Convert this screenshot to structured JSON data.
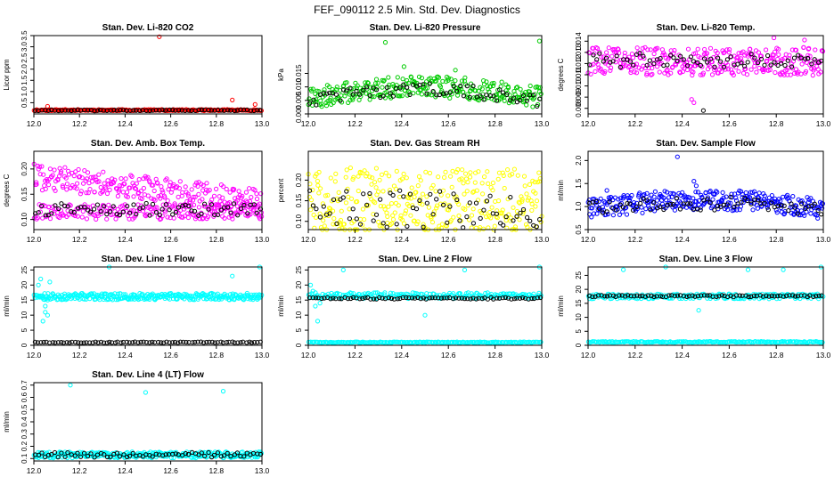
{
  "figure_title": "FEF_090112  2.5 Min. Std. Dev. Diagnostics",
  "colors": {
    "red": "#ff0000",
    "green": "#00cc00",
    "magenta": "#ff00ff",
    "yellow": "#ffff00",
    "blue": "#0000ff",
    "cyan": "#00ffff",
    "black": "#000000"
  },
  "chart_data": [
    {
      "id": "co2",
      "type": "scatter",
      "title": "Stan. Dev. Li-820 CO2",
      "xlabel": "",
      "ylabel": "Licor ppm",
      "xlim": [
        12.0,
        13.0
      ],
      "ylim": [
        0.0,
        3.5
      ],
      "xticks": [
        "12.0",
        "12.2",
        "12.4",
        "12.6",
        "12.8",
        "13.0"
      ],
      "yticks": [
        "0.5",
        "1.0",
        "1.5",
        "2.0",
        "2.5",
        "3.0",
        "3.5"
      ],
      "series": [
        {
          "name": "all",
          "color": "#ff0000",
          "gen": {
            "mode": "flat",
            "base": 0.17,
            "spread": 0.06,
            "n": 220,
            "seed": 11
          },
          "extra": [
            {
              "x": 12.55,
              "y": 3.45
            },
            {
              "x": 12.87,
              "y": 0.62
            },
            {
              "x": 12.97,
              "y": 0.42
            },
            {
              "x": 12.06,
              "y": 0.34
            }
          ]
        },
        {
          "name": "sampled",
          "color": "#000000",
          "gen": {
            "mode": "flat",
            "base": 0.16,
            "spread": 0.05,
            "n": 70,
            "seed": 12
          }
        }
      ]
    },
    {
      "id": "pressure",
      "type": "scatter",
      "title": "Stan. Dev. Li-820 Pressure",
      "xlabel": "",
      "ylabel": "kPa",
      "xlim": [
        12.0,
        13.0
      ],
      "ylim": [
        0.0,
        0.029
      ],
      "xticks": [
        "12.0",
        "12.2",
        "12.4",
        "12.6",
        "12.8",
        "13.0"
      ],
      "yticks": [
        "0.000",
        "0.005",
        "0.010",
        "0.015"
      ],
      "series": [
        {
          "name": "all",
          "color": "#00cc00",
          "gen": {
            "mode": "hump",
            "base": 0.006,
            "amp": 0.004,
            "spread": 0.008,
            "n": 300,
            "seed": 21
          },
          "extra": [
            {
              "x": 12.33,
              "y": 0.0265
            },
            {
              "x": 12.99,
              "y": 0.027
            },
            {
              "x": 12.41,
              "y": 0.0175
            },
            {
              "x": 12.63,
              "y": 0.0162
            }
          ]
        },
        {
          "name": "sampled",
          "color": "#000000",
          "gen": {
            "mode": "hump",
            "base": 0.005,
            "amp": 0.004,
            "spread": 0.005,
            "n": 70,
            "seed": 22
          }
        }
      ]
    },
    {
      "id": "licortemp",
      "type": "scatter",
      "title": "Stan. Dev. Li-820 Temp.",
      "xlabel": "",
      "ylabel": "degrees C",
      "xlim": [
        12.0,
        13.0
      ],
      "ylim": [
        0.0075,
        0.0145
      ],
      "xticks": [
        "12.0",
        "12.2",
        "12.4",
        "12.6",
        "12.8",
        "13.0"
      ],
      "yticks": [
        "0.008",
        "0.009",
        "0.010",
        "0.011",
        "0.012",
        "0.013",
        "0.014"
      ],
      "series": [
        {
          "name": "all",
          "color": "#ff00ff",
          "gen": {
            "mode": "flat",
            "base": 0.0122,
            "spread": 0.0025,
            "n": 320,
            "seed": 31
          },
          "extra": [
            {
              "x": 12.44,
              "y": 0.0088
            },
            {
              "x": 12.45,
              "y": 0.0085
            },
            {
              "x": 12.79,
              "y": 0.0143
            },
            {
              "x": 12.92,
              "y": 0.0141
            }
          ]
        },
        {
          "name": "sampled",
          "color": "#000000",
          "gen": {
            "mode": "flat",
            "base": 0.0123,
            "spread": 0.0013,
            "n": 70,
            "seed": 32
          },
          "extra": [
            {
              "x": 12.49,
              "y": 0.0078
            }
          ]
        }
      ]
    },
    {
      "id": "ambtemp",
      "type": "scatter",
      "title": "Stan. Dev. Amb. Box Temp.",
      "xlabel": "",
      "ylabel": "degrees C",
      "xlim": [
        12.0,
        13.0
      ],
      "ylim": [
        0.08,
        0.235
      ],
      "xticks": [
        "12.0",
        "12.2",
        "12.4",
        "12.6",
        "12.8",
        "13.0"
      ],
      "yticks": [
        "0.10",
        "0.15",
        "0.20"
      ],
      "series": [
        {
          "name": "upper",
          "color": "#ff00ff",
          "gen": {
            "mode": "decline",
            "base": 0.185,
            "slope": -0.05,
            "spread": 0.05,
            "n": 260,
            "seed": 41
          }
        },
        {
          "name": "lower",
          "color": "#ff00ff",
          "gen": {
            "mode": "flat",
            "base": 0.115,
            "spread": 0.03,
            "n": 200,
            "seed": 42
          }
        },
        {
          "name": "sampled",
          "color": "#000000",
          "gen": {
            "mode": "flat",
            "base": 0.12,
            "spread": 0.025,
            "n": 70,
            "seed": 43
          }
        }
      ]
    },
    {
      "id": "rh",
      "type": "scatter",
      "title": "Stan. Dev. Gas Stream RH",
      "xlabel": "",
      "ylabel": "percent",
      "xlim": [
        12.0,
        13.0
      ],
      "ylim": [
        0.08,
        0.27
      ],
      "xticks": [
        "12.0",
        "12.2",
        "12.4",
        "12.6",
        "12.8",
        "13.0"
      ],
      "yticks": [
        "0.10",
        "0.15",
        "0.20"
      ],
      "series": [
        {
          "name": "all",
          "color": "#ffff00",
          "gen": {
            "mode": "flat",
            "base": 0.15,
            "spread": 0.16,
            "n": 330,
            "seed": 51
          }
        },
        {
          "name": "sampled",
          "color": "#000000",
          "gen": {
            "mode": "flat",
            "base": 0.13,
            "spread": 0.09,
            "n": 70,
            "seed": 52
          }
        }
      ]
    },
    {
      "id": "sampleflow",
      "type": "scatter",
      "title": "Stan. Dev. Sample Flow",
      "xlabel": "",
      "ylabel": "ml/min",
      "xlim": [
        12.0,
        13.0
      ],
      "ylim": [
        0.5,
        2.2
      ],
      "xticks": [
        "12.0",
        "12.2",
        "12.4",
        "12.6",
        "12.8",
        "13.0"
      ],
      "yticks": [
        "0.5",
        "1.0",
        "1.5",
        "2.0"
      ],
      "series": [
        {
          "name": "all",
          "color": "#0000ff",
          "gen": {
            "mode": "hump",
            "base": 0.95,
            "amp": 0.2,
            "spread": 0.45,
            "n": 320,
            "seed": 61
          },
          "extra": [
            {
              "x": 12.38,
              "y": 2.08
            },
            {
              "x": 12.45,
              "y": 1.55
            },
            {
              "x": 12.46,
              "y": 1.45
            },
            {
              "x": 12.08,
              "y": 1.35
            }
          ]
        },
        {
          "name": "sampled",
          "color": "#000000",
          "gen": {
            "mode": "hump",
            "base": 0.95,
            "amp": 0.12,
            "spread": 0.3,
            "n": 70,
            "seed": 62
          }
        }
      ]
    },
    {
      "id": "line1",
      "type": "scatter",
      "title": "Stan. Dev. Line 1 Flow",
      "xlabel": "",
      "ylabel": "ml/min",
      "xlim": [
        12.0,
        13.0
      ],
      "ylim": [
        0,
        26
      ],
      "xticks": [
        "12.0",
        "12.2",
        "12.4",
        "12.6",
        "12.8",
        "13.0"
      ],
      "yticks": [
        "0",
        "5",
        "10",
        "15",
        "20",
        "25"
      ],
      "series": [
        {
          "name": "all",
          "color": "#00ffff",
          "gen": {
            "mode": "flat",
            "base": 16.2,
            "spread": 2.2,
            "n": 320,
            "seed": 71
          },
          "extra": [
            {
              "x": 12.02,
              "y": 20
            },
            {
              "x": 12.03,
              "y": 22
            },
            {
              "x": 12.05,
              "y": 13
            },
            {
              "x": 12.05,
              "y": 11
            },
            {
              "x": 12.04,
              "y": 8
            },
            {
              "x": 12.06,
              "y": 10
            },
            {
              "x": 12.07,
              "y": 21
            },
            {
              "x": 12.33,
              "y": 26
            },
            {
              "x": 12.87,
              "y": 23
            },
            {
              "x": 12.99,
              "y": 26
            },
            {
              "x": 12.06,
              "y": 15
            }
          ]
        },
        {
          "name": "sampled",
          "color": "#000000",
          "gen": {
            "mode": "flat",
            "base": 1.0,
            "spread": 0.3,
            "n": 80,
            "seed": 72
          }
        }
      ]
    },
    {
      "id": "line2",
      "type": "scatter",
      "title": "Stan. Dev. Line 2 Flow",
      "xlabel": "",
      "ylabel": "ml/min",
      "xlim": [
        12.0,
        13.0
      ],
      "ylim": [
        0,
        26
      ],
      "xticks": [
        "12.0",
        "12.2",
        "12.4",
        "12.6",
        "12.8",
        "13.0"
      ],
      "yticks": [
        "0",
        "5",
        "10",
        "15",
        "20",
        "25"
      ],
      "series": [
        {
          "name": "upper",
          "color": "#00ffff",
          "gen": {
            "mode": "flat",
            "base": 16.5,
            "spread": 2.0,
            "n": 220,
            "seed": 81
          },
          "extra": [
            {
              "x": 12.01,
              "y": 20
            },
            {
              "x": 12.02,
              "y": 18
            },
            {
              "x": 12.03,
              "y": 13
            },
            {
              "x": 12.04,
              "y": 8
            },
            {
              "x": 12.05,
              "y": 14
            },
            {
              "x": 12.15,
              "y": 25
            },
            {
              "x": 12.5,
              "y": 10
            },
            {
              "x": 12.67,
              "y": 25
            },
            {
              "x": 12.99,
              "y": 26
            }
          ]
        },
        {
          "name": "lower",
          "color": "#00ffff",
          "gen": {
            "mode": "flat",
            "base": 1.0,
            "spread": 0.3,
            "n": 200,
            "seed": 82
          }
        },
        {
          "name": "sampled",
          "color": "#000000",
          "gen": {
            "mode": "flat",
            "base": 15.6,
            "spread": 0.6,
            "n": 80,
            "seed": 83
          }
        }
      ]
    },
    {
      "id": "line3",
      "type": "scatter",
      "title": "Stan. Dev. Line 3 Flow",
      "xlabel": "",
      "ylabel": "ml/min",
      "xlim": [
        12.0,
        13.0
      ],
      "ylim": [
        0,
        28
      ],
      "xticks": [
        "12.0",
        "12.2",
        "12.4",
        "12.6",
        "12.8",
        "13.0"
      ],
      "yticks": [
        "0",
        "5",
        "10",
        "15",
        "20",
        "25"
      ],
      "series": [
        {
          "name": "upper",
          "color": "#00ffff",
          "gen": {
            "mode": "flat",
            "base": 17.5,
            "spread": 1.8,
            "n": 220,
            "seed": 91
          },
          "extra": [
            {
              "x": 12.15,
              "y": 27
            },
            {
              "x": 12.33,
              "y": 28
            },
            {
              "x": 12.47,
              "y": 12.5
            },
            {
              "x": 12.68,
              "y": 27
            },
            {
              "x": 12.83,
              "y": 27
            },
            {
              "x": 12.99,
              "y": 28
            }
          ]
        },
        {
          "name": "lower",
          "color": "#00ffff",
          "gen": {
            "mode": "flat",
            "base": 1.2,
            "spread": 0.4,
            "n": 200,
            "seed": 92
          }
        },
        {
          "name": "sampled",
          "color": "#000000",
          "gen": {
            "mode": "flat",
            "base": 17.6,
            "spread": 0.6,
            "n": 80,
            "seed": 93
          }
        }
      ]
    },
    {
      "id": "line4",
      "type": "scatter",
      "title": "Stan. Dev. Line 4 (LT) Flow",
      "xlabel": "",
      "ylabel": "ml/min",
      "xlim": [
        12.0,
        13.0
      ],
      "ylim": [
        0.08,
        0.72
      ],
      "xticks": [
        "12.0",
        "12.2",
        "12.4",
        "12.6",
        "12.8",
        "13.0"
      ],
      "yticks": [
        "0.1",
        "0.2",
        "0.3",
        "0.4",
        "0.5",
        "0.6",
        "0.7"
      ],
      "series": [
        {
          "name": "all",
          "color": "#00ffff",
          "gen": {
            "mode": "flat",
            "base": 0.13,
            "spread": 0.05,
            "n": 300,
            "seed": 101
          },
          "extra": [
            {
              "x": 12.16,
              "y": 0.7
            },
            {
              "x": 12.49,
              "y": 0.64
            },
            {
              "x": 12.83,
              "y": 0.65
            }
          ]
        },
        {
          "name": "sampled",
          "color": "#000000",
          "gen": {
            "mode": "flat",
            "base": 0.13,
            "spread": 0.04,
            "n": 70,
            "seed": 102
          }
        }
      ]
    }
  ]
}
